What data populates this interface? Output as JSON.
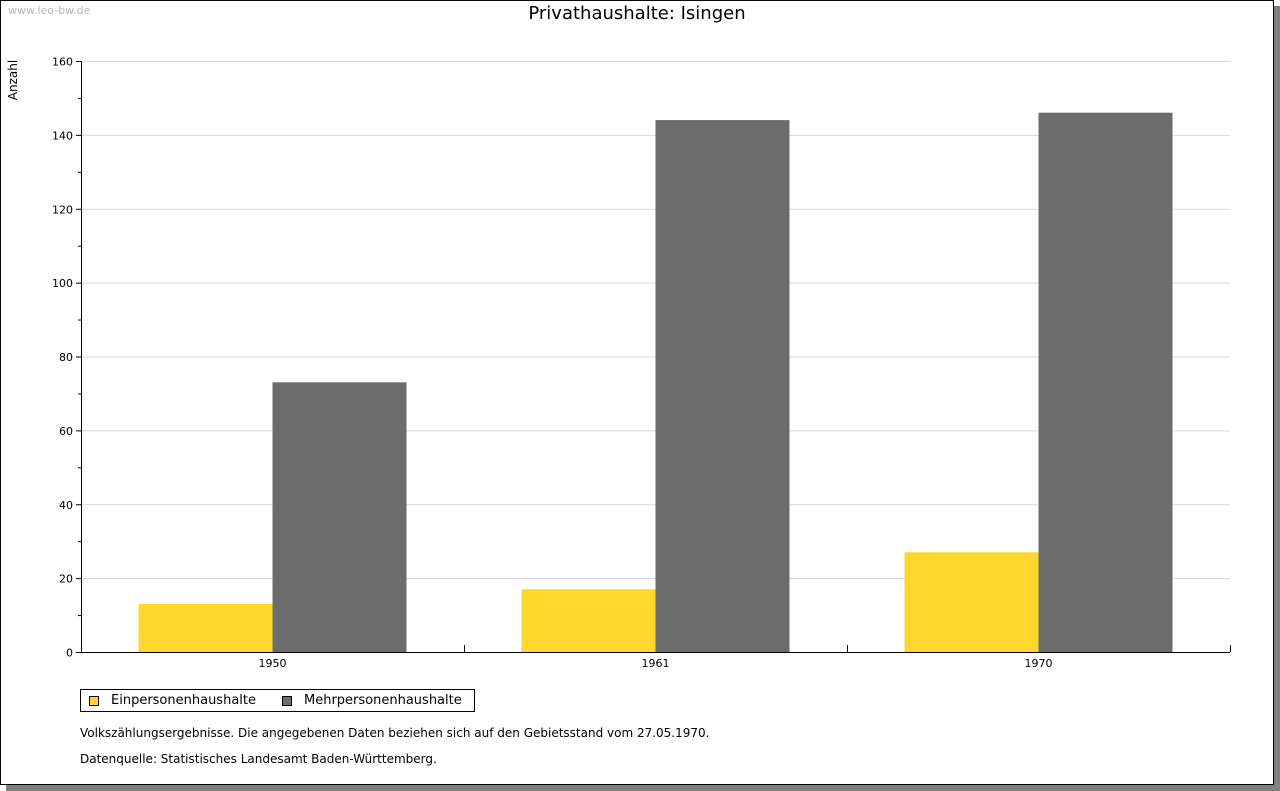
{
  "watermark": "www.leo-bw.de",
  "chart_data": {
    "type": "bar",
    "title": "Privathaushalte: Isingen",
    "xlabel": "",
    "ylabel": "Anzahl",
    "categories": [
      "1950",
      "1961",
      "1970"
    ],
    "series": [
      {
        "name": "Einpersonenhaushalte",
        "color": "#fdd72b",
        "values": [
          13,
          17,
          27
        ]
      },
      {
        "name": "Mehrpersonenhaushalte",
        "color": "#6c6c6c",
        "values": [
          73,
          144,
          146
        ]
      }
    ],
    "ylim": [
      0,
      160
    ],
    "yticks": [
      "0",
      "20",
      "40",
      "60",
      "80",
      "100",
      "120",
      "140",
      "160"
    ],
    "grid": true,
    "legend_position": "bottom-left"
  },
  "notes": {
    "census": "Volkszählungsergebnisse. Die angegebenen Daten beziehen sich auf den Gebietsstand vom 27.05.1970.",
    "source": "Datenquelle: Statistisches Landesamt Baden-Württemberg."
  }
}
